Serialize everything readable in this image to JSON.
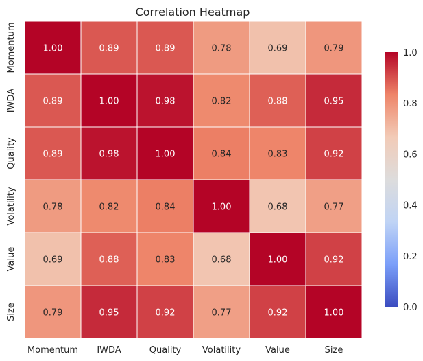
{
  "chart_data": {
    "type": "heatmap",
    "title": "Correlation Heatmap",
    "xlabel": "",
    "ylabel": "",
    "x_labels": [
      "Momentum",
      "IWDA",
      "Quality",
      "Volatility",
      "Value",
      "Size"
    ],
    "y_labels": [
      "Momentum",
      "IWDA",
      "Quality",
      "Volatility",
      "Value",
      "Size"
    ],
    "values": [
      [
        1.0,
        0.89,
        0.89,
        0.78,
        0.69,
        0.79
      ],
      [
        0.89,
        1.0,
        0.98,
        0.82,
        0.88,
        0.95
      ],
      [
        0.89,
        0.98,
        1.0,
        0.84,
        0.83,
        0.92
      ],
      [
        0.78,
        0.82,
        0.84,
        1.0,
        0.68,
        0.77
      ],
      [
        0.69,
        0.88,
        0.83,
        0.68,
        1.0,
        0.92
      ],
      [
        0.79,
        0.95,
        0.92,
        0.77,
        0.92,
        1.0
      ]
    ],
    "value_format": "0.00",
    "colorbar": {
      "range": [
        0.0,
        1.0
      ],
      "ticks": [
        "0.0",
        "0.2",
        "0.4",
        "0.6",
        "0.8",
        "1.0"
      ],
      "colormap": "coolwarm",
      "stops": [
        "#3b4cc0",
        "#7b9ff9",
        "#c0d4f5",
        "#dddcdc",
        "#f2cbb7",
        "#ee8468",
        "#b40426"
      ]
    },
    "grid": true,
    "legend": "colorbar-right"
  }
}
